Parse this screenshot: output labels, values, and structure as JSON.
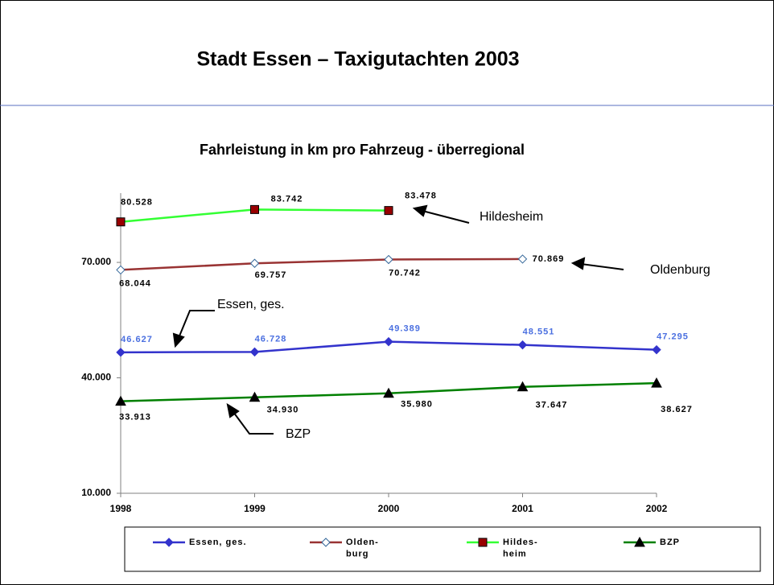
{
  "header": {
    "title": "Stadt Essen – Taxigutachten 2003"
  },
  "chart_data": {
    "type": "line",
    "title": "Fahrleistung in km pro Fahrzeug - überregional",
    "categories": [
      "1998",
      "1999",
      "2000",
      "2001",
      "2002"
    ],
    "ylim": [
      10000,
      88000
    ],
    "yticks": [
      {
        "value": 10000,
        "label": "10.000"
      },
      {
        "value": 40000,
        "label": "40.000"
      },
      {
        "value": 70000,
        "label": "70.000"
      }
    ],
    "series": [
      {
        "name": "Essen, ges.",
        "color": "#3333cc",
        "marker": "diamond",
        "marker_color": "#3333cc",
        "label_color": "#4a6fe0",
        "values": [
          46627,
          46728,
          49389,
          48551,
          47295
        ],
        "value_labels": [
          "46.627",
          "46.728",
          "49.389",
          "48.551",
          "47.295"
        ]
      },
      {
        "name": "Olden-\nburg",
        "color": "#993333",
        "marker": "diamond",
        "marker_color": "#ffffff",
        "label_color": "#000000",
        "values": [
          68044,
          69757,
          70742,
          70869,
          null
        ],
        "value_labels": [
          "68.044",
          "69.757",
          "70.742",
          "70.869",
          null
        ]
      },
      {
        "name": "Hildes-\nheim",
        "color": "#33ff33",
        "marker": "square",
        "marker_color": "#990000",
        "label_color": "#000000",
        "values": [
          80528,
          83742,
          83478,
          null,
          null
        ],
        "value_labels": [
          "80.528",
          "83.742",
          "83.478",
          null,
          null
        ]
      },
      {
        "name": "BZP",
        "color": "#008000",
        "marker": "triangle",
        "marker_color": "#000000",
        "label_color": "#000000",
        "values": [
          33913,
          34930,
          35980,
          37647,
          38627
        ],
        "value_labels": [
          "33.913",
          "34.930",
          "35.980",
          "37.647",
          "38.627"
        ]
      }
    ],
    "annotations": [
      "Hildesheim",
      "Oldenburg",
      "Essen, ges.",
      "BZP"
    ]
  }
}
